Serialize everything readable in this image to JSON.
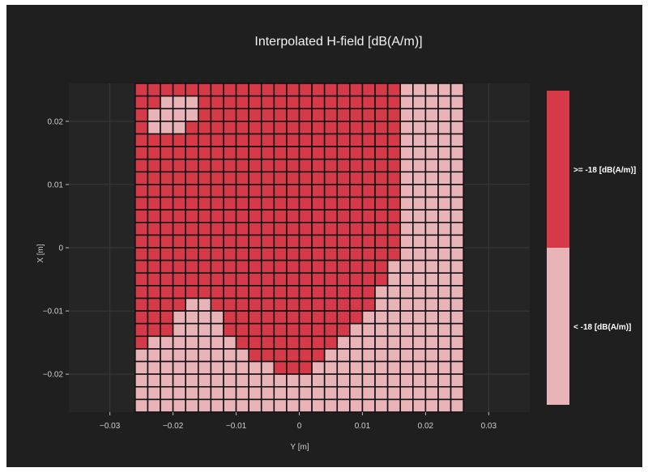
{
  "chart_data": {
    "type": "heatmap",
    "title": "Interpolated H-field [dB(A/m)]",
    "xlabel": "Y [m]",
    "ylabel": "X [m]",
    "xlim": [
      -0.0365,
      0.0365
    ],
    "ylim": [
      -0.026,
      0.026
    ],
    "x_ticks": [
      -0.03,
      -0.02,
      -0.01,
      0,
      0.01,
      0.02,
      0.03
    ],
    "x_tick_labels": [
      "−0.03",
      "−0.02",
      "−0.01",
      "0",
      "0.01",
      "0.02",
      "0.03"
    ],
    "y_ticks": [
      0.02,
      0.01,
      0,
      -0.01,
      -0.02
    ],
    "y_tick_labels": [
      "0.02",
      "0.01",
      "0",
      "−0.01",
      "−0.02"
    ],
    "grid": true,
    "cell_size_m": 0.002,
    "y_range_m": [
      -0.026,
      0.026
    ],
    "x_range_m": [
      -0.026,
      0.026
    ],
    "classes": [
      ">= -18 [dB(A/m)]",
      "< -18 [dB(A/m)]"
    ],
    "class_colors": [
      "#d63a48",
      "#e8b4b8"
    ],
    "row_order": "top (X = +0.026) to bottom (X = -0.026)",
    "column_order": "left (Y = -0.026) to right (Y = +0.026)",
    "legend": "colorbar right",
    "matrix": [
      "00000000000000000000011111",
      "00111000000000000000011111",
      "01111000000000000000011111",
      "01110000000000000000011111",
      "00000000000000000000011111",
      "00000000000000000000011111",
      "00000000000000000000011111",
      "00000000000000000000011111",
      "00000000000000000000011111",
      "00000000000000000000011111",
      "00000000000000000000011111",
      "00000000000000000000011111",
      "00000000000000000000011111",
      "00000000000000000000011111",
      "00000000000000000000111111",
      "00000000000000000000111111",
      "00000000000000000001111111",
      "00001100000000000001111111",
      "00011110000000000011111111",
      "00011110000000000111111111",
      "01111111000000001111111111",
      "11111111100000011111111111",
      "11111111111000111111111111",
      "11111111111111111111111111",
      "11111111111111111111111111",
      "11111111111111111111111111"
    ]
  },
  "colorbar": {
    "top_label": ">= -18 [dB(A/m)]",
    "bottom_label": "< -18 [dB(A/m)]"
  },
  "colors": {
    "background": "#1f1f1f",
    "plot_background": "#252525",
    "grid": "#3a3a3a",
    "cell_border": "#111111"
  }
}
